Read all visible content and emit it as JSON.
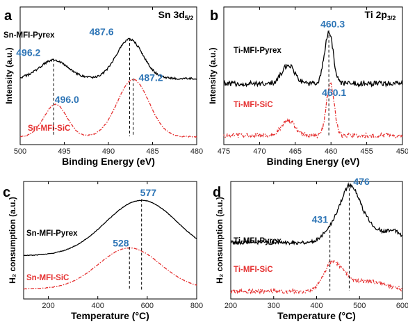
{
  "colors": {
    "series_black": "#000000",
    "series_red": "#e53030",
    "value_label": "#2e75b6"
  },
  "chart_data": [
    {
      "panel": "a",
      "type": "line",
      "title": "Sn 3d",
      "title_sub": "5/2",
      "xlabel": "Binding Energy (eV)",
      "ylabel": "Intensity (a.u.)",
      "xlim": [
        500,
        480
      ],
      "x_reversed": true,
      "xticks": [
        500,
        495,
        490,
        485,
        480
      ],
      "show_yticks": false,
      "series": [
        {
          "name": "Sn-MFI-Pyrex",
          "color": "#000000",
          "style": "solid",
          "peaks": [
            [
              496.2,
              0.7,
              1.6
            ],
            [
              487.6,
              1.5,
              1.5
            ]
          ],
          "baseline": 2.55,
          "noise": 0.04,
          "x": [
            500,
            498,
            496.2,
            494,
            492,
            490,
            487.6,
            486,
            484,
            482,
            480
          ],
          "y": [
            2.55,
            2.7,
            3.25,
            2.75,
            2.6,
            3.1,
            4.05,
            3.5,
            2.75,
            2.6,
            2.55
          ]
        },
        {
          "name": "Sn-MFI-SiC",
          "color": "#e53030",
          "style": "dashdot",
          "peaks": [
            [
              496.0,
              1.25,
              1.3
            ],
            [
              487.2,
              2.2,
              1.8
            ]
          ],
          "baseline": 0.3,
          "noise": 0.02,
          "x": [
            500,
            498,
            496,
            494,
            492,
            490,
            487.2,
            485,
            483,
            481,
            480
          ],
          "y": [
            0.3,
            0.55,
            1.55,
            0.55,
            0.45,
            1.05,
            2.5,
            1.6,
            0.6,
            0.33,
            0.3
          ]
        }
      ],
      "annotations": [
        {
          "text": "496.2",
          "x": 496.2,
          "y": 3.25
        },
        {
          "text": "487.6",
          "x": 487.6,
          "y": 4.05
        },
        {
          "text": "496.0",
          "x": 496.0,
          "y": 1.55
        },
        {
          "text": "487.2",
          "x": 487.2,
          "y": 2.5
        }
      ]
    },
    {
      "panel": "b",
      "type": "line",
      "title": "Ti 2p",
      "title_sub": "3/2",
      "xlabel": "Binding Energy (eV)",
      "ylabel": "Intensity (a.u.)",
      "xlim": [
        475,
        450
      ],
      "x_reversed": true,
      "xticks": [
        475,
        470,
        465,
        460,
        455,
        450
      ],
      "show_yticks": false,
      "series": [
        {
          "name": "Ti-MFI-Pyrex",
          "color": "#000000",
          "style": "solid",
          "peaks": [
            [
              466.0,
              0.7,
              0.9
            ],
            [
              460.3,
              2.0,
              0.6
            ]
          ],
          "baseline": 2.35,
          "noise": 0.1,
          "x": [
            475,
            470,
            466,
            463,
            460.3,
            458,
            455,
            450
          ],
          "y": [
            2.35,
            2.4,
            3.05,
            2.45,
            4.35,
            2.55,
            2.35,
            2.3
          ]
        },
        {
          "name": "Ti-MFI-SiC",
          "color": "#e53030",
          "style": "dashdot",
          "peaks": [
            [
              466.0,
              0.6,
              0.9
            ],
            [
              460.1,
              2.0,
              0.55
            ]
          ],
          "baseline": 0.35,
          "noise": 0.09,
          "x": [
            475,
            470,
            466,
            463,
            460.1,
            458,
            455,
            450
          ],
          "y": [
            0.35,
            0.4,
            0.95,
            0.4,
            2.35,
            0.45,
            0.35,
            0.35
          ]
        }
      ],
      "annotations": [
        {
          "text": "460.3",
          "x": 460.3,
          "y": 4.35
        },
        {
          "text": "460.1",
          "x": 460.1,
          "y": 2.35
        }
      ]
    },
    {
      "panel": "c",
      "type": "line",
      "xlabel": "Temperature (°C)",
      "ylabel": "H₂ consumption (a.u.)",
      "xlim": [
        100,
        800
      ],
      "xticks": [
        200,
        400,
        600,
        800
      ],
      "show_yticks": false,
      "series": [
        {
          "name": "Sn-MFI-Pyrex",
          "color": "#000000",
          "style": "solid",
          "peaks": [
            [
              577,
              2.5,
              145
            ]
          ],
          "baseline": 1.95,
          "noise": 0.012,
          "x": [
            100,
            200,
            300,
            400,
            500,
            577,
            650,
            700,
            800
          ],
          "y": [
            1.95,
            2.0,
            2.25,
            2.8,
            3.95,
            4.45,
            3.95,
            3.3,
            2.35
          ]
        },
        {
          "name": "Sn-MFI-SiC",
          "color": "#e53030",
          "style": "dashdot",
          "peaks": [
            [
              528,
              1.85,
              125
            ]
          ],
          "baseline": 0.45,
          "noise": 0.01,
          "x": [
            100,
            200,
            300,
            400,
            528,
            600,
            700,
            800
          ],
          "y": [
            0.45,
            0.47,
            0.65,
            1.3,
            2.3,
            1.95,
            0.95,
            0.55
          ]
        }
      ],
      "annotations": [
        {
          "text": "577",
          "x": 577,
          "y": 4.45
        },
        {
          "text": "528",
          "x": 528,
          "y": 2.3
        }
      ]
    },
    {
      "panel": "d",
      "type": "line",
      "xlabel": "Temperature (°C)",
      "ylabel": "H₂ consumption (a.u.)",
      "xlim": [
        200,
        600
      ],
      "xticks": [
        200,
        300,
        400,
        500,
        600
      ],
      "show_yticks": false,
      "series": [
        {
          "name": "Ti-MFI-Pyrex",
          "color": "#000000",
          "style": "solid",
          "peaks": [
            [
              431,
              0.5,
              18
            ],
            [
              476,
              2.4,
              22
            ],
            [
              520,
              0.75,
              25
            ],
            [
              580,
              0.5,
              20
            ]
          ],
          "baseline": 2.55,
          "noise": 0.09,
          "x": [
            200,
            300,
            400,
            431,
            476,
            520,
            560,
            600
          ],
          "y": [
            2.55,
            2.6,
            2.75,
            3.05,
            4.95,
            3.3,
            3.0,
            3.0
          ]
        },
        {
          "name": "Ti-MFI-SiC",
          "color": "#e53030",
          "style": "dashdot",
          "peaks": [
            [
              431,
              0.9,
              18
            ],
            [
              455,
              0.6,
              20
            ],
            [
              520,
              0.45,
              45
            ]
          ],
          "baseline": 0.35,
          "noise": 0.09,
          "x": [
            200,
            300,
            400,
            431,
            476,
            520,
            600
          ],
          "y": [
            0.35,
            0.4,
            0.55,
            1.25,
            0.95,
            0.8,
            0.5
          ]
        }
      ],
      "annotations": [
        {
          "text": "476",
          "x": 476,
          "y": 4.95
        },
        {
          "text": "431",
          "x": 431,
          "y": 3.05
        }
      ]
    }
  ]
}
